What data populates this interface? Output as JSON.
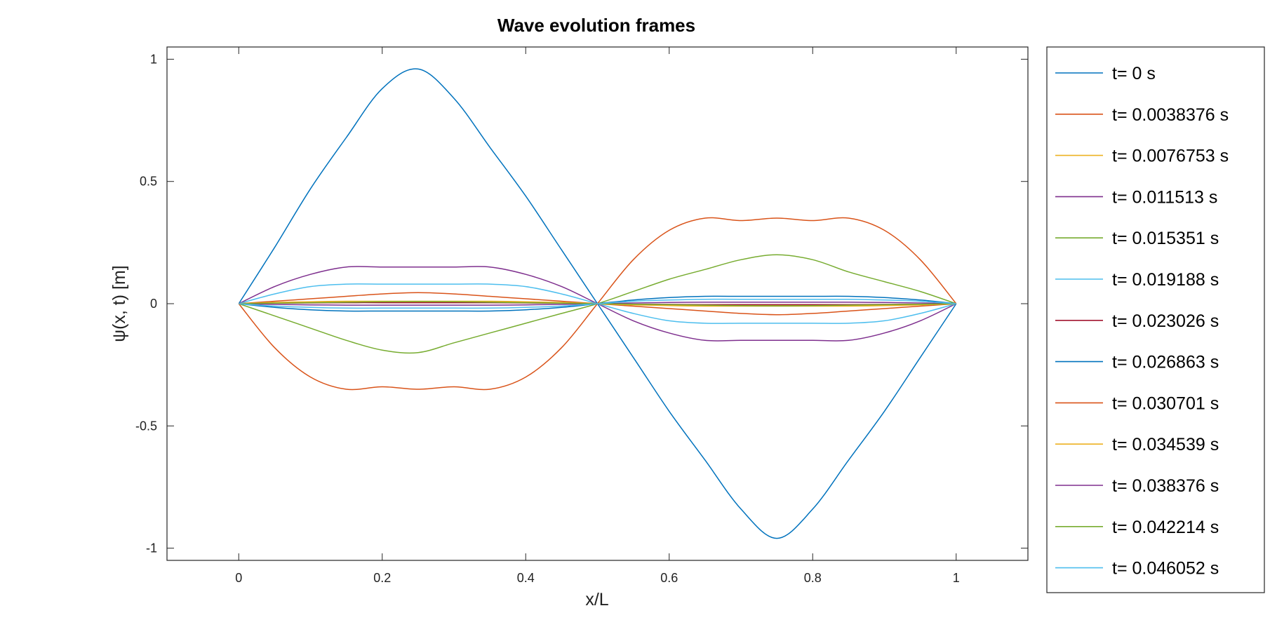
{
  "chart_data": {
    "type": "line",
    "title": "Wave evolution frames",
    "xlabel": "x/L",
    "ylabel": "ψ(x, t) [m]",
    "xlim": [
      -0.1,
      1.1
    ],
    "ylim": [
      -1.05,
      1.05
    ],
    "xticks": [
      0,
      0.2,
      0.4,
      0.6,
      0.8,
      1
    ],
    "xtick_labels": [
      "0",
      "0.2",
      "0.4",
      "0.6",
      "0.8",
      "1"
    ],
    "yticks": [
      -1,
      -0.5,
      0,
      0.5,
      1
    ],
    "ytick_labels": [
      "-1",
      "-0.5",
      "0",
      "0.5",
      "1"
    ],
    "grid": false,
    "legend_position": "right",
    "x": [
      0,
      0.05,
      0.1,
      0.15,
      0.2,
      0.25,
      0.3,
      0.35,
      0.4,
      0.45,
      0.5,
      0.55,
      0.6,
      0.65,
      0.7,
      0.75,
      0.8,
      0.85,
      0.9,
      0.95,
      1
    ],
    "series": [
      {
        "name": "t= 0 s",
        "color": "#0072BD",
        "values": [
          0,
          0.23,
          0.47,
          0.68,
          0.88,
          0.96,
          0.84,
          0.64,
          0.44,
          0.22,
          0,
          -0.22,
          -0.44,
          -0.64,
          -0.84,
          -0.96,
          -0.84,
          -0.64,
          -0.44,
          -0.22,
          0
        ]
      },
      {
        "name": "t= 0.0038376 s",
        "color": "#D95319",
        "values": [
          0,
          -0.18,
          -0.3,
          -0.35,
          -0.34,
          -0.35,
          -0.34,
          -0.35,
          -0.3,
          -0.18,
          0,
          0.18,
          0.3,
          0.35,
          0.34,
          0.35,
          0.34,
          0.35,
          0.3,
          0.18,
          0
        ]
      },
      {
        "name": "t= 0.0076753 s",
        "color": "#EDB120",
        "values": [
          0,
          0.003,
          0.005,
          0.006,
          0.006,
          0.006,
          0.006,
          0.006,
          0.005,
          0.003,
          0,
          -0.003,
          -0.005,
          -0.006,
          -0.006,
          -0.006,
          -0.006,
          -0.006,
          -0.005,
          -0.003,
          0
        ]
      },
      {
        "name": "t= 0.011513 s",
        "color": "#7E2F8E",
        "values": [
          0,
          0.07,
          0.12,
          0.15,
          0.15,
          0.15,
          0.15,
          0.15,
          0.12,
          0.07,
          0,
          -0.07,
          -0.12,
          -0.15,
          -0.15,
          -0.15,
          -0.15,
          -0.15,
          -0.12,
          -0.07,
          0
        ]
      },
      {
        "name": "t= 0.015351 s",
        "color": "#77AC30",
        "values": [
          0,
          -0.05,
          -0.1,
          -0.15,
          -0.19,
          -0.2,
          -0.16,
          -0.12,
          -0.08,
          -0.04,
          0,
          0.05,
          0.1,
          0.14,
          0.18,
          0.2,
          0.18,
          0.13,
          0.09,
          0.05,
          0
        ]
      },
      {
        "name": "t= 0.019188 s",
        "color": "#4DBEEE",
        "values": [
          0,
          0.04,
          0.07,
          0.08,
          0.08,
          0.08,
          0.08,
          0.08,
          0.07,
          0.04,
          0,
          -0.04,
          -0.07,
          -0.08,
          -0.08,
          -0.08,
          -0.08,
          -0.08,
          -0.07,
          -0.04,
          0
        ]
      },
      {
        "name": "t= 0.023026 s",
        "color": "#A2142F",
        "values": [
          0,
          0.002,
          0.003,
          0.004,
          0.004,
          0.004,
          0.004,
          0.004,
          0.003,
          0.002,
          0,
          -0.002,
          -0.003,
          -0.004,
          -0.004,
          -0.004,
          -0.004,
          -0.004,
          -0.003,
          -0.002,
          0
        ]
      },
      {
        "name": "t= 0.026863 s",
        "color": "#0072BD",
        "values": [
          0,
          -0.015,
          -0.025,
          -0.03,
          -0.03,
          -0.03,
          -0.03,
          -0.03,
          -0.025,
          -0.015,
          0,
          0.015,
          0.025,
          0.03,
          0.03,
          0.03,
          0.03,
          0.03,
          0.025,
          0.015,
          0
        ]
      },
      {
        "name": "t= 0.030701 s",
        "color": "#D95319",
        "values": [
          0,
          0.01,
          0.02,
          0.03,
          0.04,
          0.045,
          0.04,
          0.03,
          0.02,
          0.01,
          0,
          -0.01,
          -0.02,
          -0.03,
          -0.04,
          -0.045,
          -0.04,
          -0.03,
          -0.02,
          -0.01,
          0
        ]
      },
      {
        "name": "t= 0.034539 s",
        "color": "#EDB120",
        "values": [
          0,
          0.005,
          0.008,
          0.01,
          0.01,
          0.01,
          0.01,
          0.01,
          0.008,
          0.005,
          0,
          -0.005,
          -0.008,
          -0.01,
          -0.01,
          -0.01,
          -0.01,
          -0.01,
          -0.008,
          -0.005,
          0
        ]
      },
      {
        "name": "t= 0.038376 s",
        "color": "#7E2F8E",
        "values": [
          0,
          -0.003,
          -0.005,
          -0.006,
          -0.006,
          -0.006,
          -0.006,
          -0.006,
          -0.005,
          -0.003,
          0,
          0.003,
          0.005,
          0.006,
          0.006,
          0.006,
          0.006,
          0.006,
          0.005,
          0.003,
          0
        ]
      },
      {
        "name": "t= 0.042214 s",
        "color": "#77AC30",
        "values": [
          0,
          0.002,
          0.004,
          0.006,
          0.008,
          0.009,
          0.008,
          0.006,
          0.004,
          0.002,
          0,
          -0.002,
          -0.004,
          -0.006,
          -0.008,
          -0.009,
          -0.008,
          -0.006,
          -0.004,
          -0.002,
          0
        ]
      },
      {
        "name": "t= 0.046052 s",
        "color": "#4DBEEE",
        "values": [
          0,
          -0.01,
          -0.015,
          -0.018,
          -0.018,
          -0.018,
          -0.018,
          -0.018,
          -0.015,
          -0.01,
          0,
          0.01,
          0.015,
          0.018,
          0.018,
          0.018,
          0.018,
          0.018,
          0.015,
          0.01,
          0
        ]
      }
    ]
  }
}
